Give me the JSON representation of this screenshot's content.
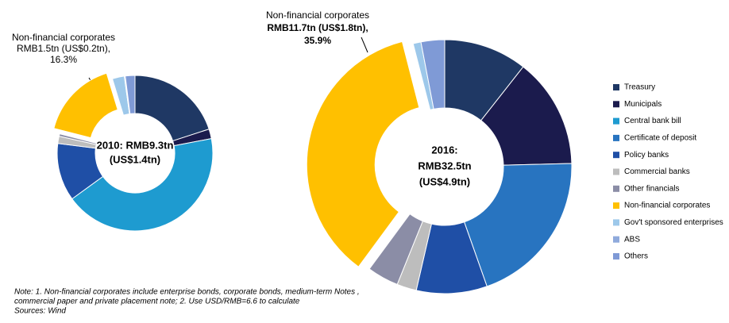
{
  "chart_data": [
    {
      "type": "donut",
      "center_text": [
        "2010: RMB9.3tn",
        "(US$1.4tn)"
      ],
      "annotation": [
        "Non-financial corporates",
        "RMB1.5tn (US$0.2tn),",
        "16.3%"
      ],
      "categories": [
        "Treasury",
        "Municipals",
        "Central bank bill",
        "Certificate of deposit",
        "Policy banks",
        "Commercial banks",
        "Other financials",
        "Non-financial corporates",
        "Gov't sponsored enterprises",
        "ABS",
        "Others"
      ],
      "values": [
        20,
        2,
        43,
        0,
        12,
        1.5,
        0.5,
        16.3,
        2.5,
        0.2,
        2
      ],
      "colors": [
        "#1f3864",
        "#1b1b4d",
        "#1e9bd0",
        "#2874c0",
        "#1f4fa6",
        "#bdbdbd",
        "#8b8da6",
        "#ffc000",
        "#9dc8ea",
        "#8faadc",
        "#7f9ad6"
      ],
      "exploded": 7
    },
    {
      "type": "donut",
      "center_text": [
        "2016:",
        "RMB32.5tn",
        "(US$4.9tn)"
      ],
      "annotation": [
        "Non-financial corporates",
        "RMB11.7tn (US$1.8tn),",
        "35.9%"
      ],
      "categories": [
        "Treasury",
        "Municipals",
        "Central bank bill",
        "Certificate of deposit",
        "Policy banks",
        "Commercial banks",
        "Other financials",
        "Non-financial corporates",
        "Gov't sponsored enterprises",
        "ABS",
        "Others"
      ],
      "values": [
        10.6,
        14,
        0,
        20,
        9,
        2.5,
        4,
        35.9,
        1,
        0,
        3
      ],
      "colors": [
        "#1f3864",
        "#1b1b4d",
        "#1e9bd0",
        "#2874c0",
        "#1f4fa6",
        "#bdbdbd",
        "#8b8da6",
        "#ffc000",
        "#9dc8ea",
        "#8faadc",
        "#7f9ad6"
      ],
      "exploded": 7
    }
  ],
  "notes": [
    "Note: 1. Non-financial corporates include enterprise bonds, corporate bonds, medium-term Notes ,",
    "commercial paper and private placement note; 2. Use USD/RMB=6.6 to calculate",
    "Sources: Wind"
  ]
}
